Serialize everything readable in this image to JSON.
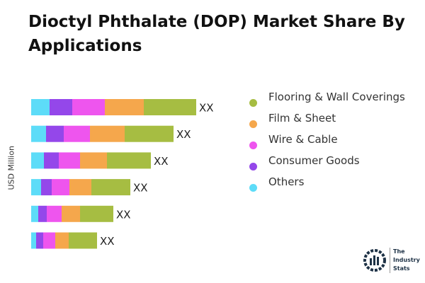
{
  "chart_data": {
    "type": "bar",
    "orientation": "horizontal",
    "stacked": true,
    "title": "Dioctyl Phthalate (DOP) Market Share By Applications",
    "ylabel": "USD Million",
    "categories": [
      "",
      "",
      "",
      "",
      "",
      ""
    ],
    "data_labels": [
      "XX",
      "XX",
      "XX",
      "XX",
      "XX",
      "XX"
    ],
    "legend_position": "right",
    "grid": false,
    "series": [
      {
        "name": "Others",
        "color": "#5ddcf8",
        "values": [
          26,
          21,
          18,
          14,
          10,
          7
        ]
      },
      {
        "name": "Consumer Goods",
        "color": "#9447ea",
        "values": [
          32,
          25,
          21,
          15,
          12,
          10
        ]
      },
      {
        "name": "Wire & Cable",
        "color": "#ee55ee",
        "values": [
          46,
          37,
          30,
          25,
          21,
          17
        ]
      },
      {
        "name": "Film & Sheet",
        "color": "#f5a74c",
        "values": [
          55,
          49,
          38,
          31,
          26,
          19
        ]
      },
      {
        "name": "Flooring & Wall Coverings",
        "color": "#a6bd42",
        "values": [
          74,
          69,
          62,
          55,
          47,
          40
        ]
      }
    ]
  },
  "legend_order": [
    4,
    3,
    2,
    1,
    0
  ],
  "logo": {
    "text": [
      "The",
      "Industry",
      "Stats"
    ]
  }
}
